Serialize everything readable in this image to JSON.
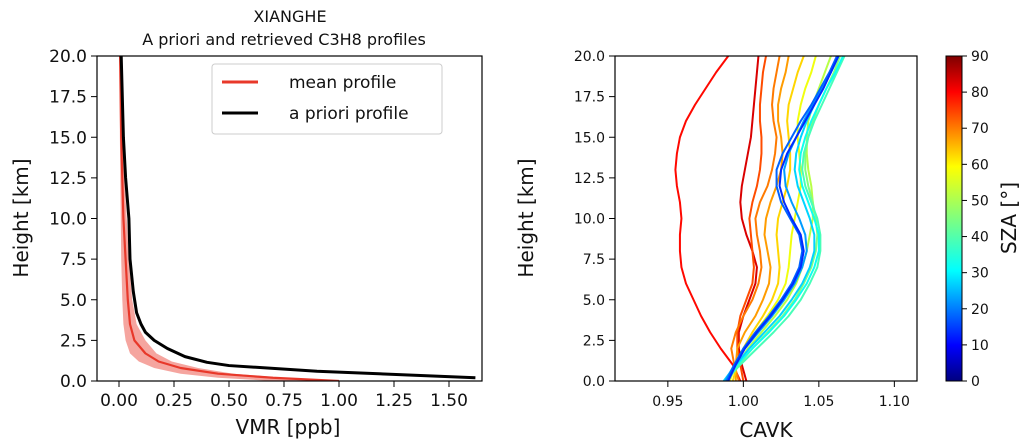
{
  "chart_data": [
    {
      "type": "line",
      "title": "XIANGHE",
      "subtitle": "A priori and retrieved C3H8 profiles",
      "xlabel": "VMR [ppb]",
      "ylabel": "Height [km]",
      "xlim": [
        -0.1,
        1.65
      ],
      "ylim": [
        0,
        20
      ],
      "xticks": [
        "0.00",
        "0.25",
        "0.50",
        "0.75",
        "1.00",
        "1.25",
        "1.50"
      ],
      "yticks": [
        "0.0",
        "2.5",
        "5.0",
        "7.5",
        "10.0",
        "12.5",
        "15.0",
        "17.5",
        "20.0"
      ],
      "legend": "top-right",
      "grid": false,
      "series": [
        {
          "name": "mean profile",
          "color": "#e8382a",
          "x": [
            1.0,
            0.7,
            0.45,
            0.28,
            0.18,
            0.12,
            0.07,
            0.05,
            0.04,
            0.03,
            0.02,
            0.015,
            0.01,
            0.005
          ],
          "y": [
            0.0,
            0.2,
            0.45,
            0.8,
            1.2,
            1.7,
            2.5,
            3.5,
            5.0,
            7.5,
            10.0,
            12.5,
            15.0,
            20.0
          ],
          "band_low": [
            0.7,
            0.45,
            0.28,
            0.16,
            0.09,
            0.05,
            0.03,
            0.02,
            0.015,
            0.01,
            0.008,
            0.006,
            0.004,
            0.002
          ],
          "band_high": [
            1.0,
            0.75,
            0.52,
            0.36,
            0.24,
            0.17,
            0.12,
            0.08,
            0.06,
            0.045,
            0.035,
            0.025,
            0.018,
            0.01
          ]
        },
        {
          "name": "a priori profile",
          "color": "#000000",
          "x": [
            1.62,
            0.9,
            0.5,
            0.4,
            0.3,
            0.22,
            0.16,
            0.12,
            0.1,
            0.08,
            0.065,
            0.05,
            0.045,
            0.03,
            0.02,
            0.01
          ],
          "y": [
            0.2,
            0.6,
            0.95,
            1.15,
            1.5,
            2.0,
            2.5,
            3.0,
            3.5,
            4.2,
            5.5,
            7.5,
            10.0,
            12.5,
            15.0,
            20.0
          ]
        }
      ]
    },
    {
      "type": "line",
      "xlabel": "CAVK",
      "ylabel": "Height [km]",
      "xlim": [
        0.915,
        1.115
      ],
      "ylim": [
        0,
        20
      ],
      "xticks": [
        "0.95",
        "1.00",
        "1.05",
        "1.10"
      ],
      "yticks": [
        "0.0",
        "2.5",
        "5.0",
        "7.5",
        "10.0",
        "12.5",
        "15.0",
        "17.5",
        "20.0"
      ],
      "colorbar": {
        "label": "SZA [°]",
        "range": [
          0,
          90
        ],
        "ticks": [
          "0",
          "10",
          "20",
          "30",
          "40",
          "50",
          "60",
          "70",
          "80",
          "90"
        ],
        "colormap": "jet"
      },
      "grid": false,
      "heights": [
        0,
        1,
        2,
        3,
        4,
        5,
        6,
        7,
        8,
        9,
        10,
        11,
        12,
        13,
        14,
        15,
        16,
        17,
        18,
        19,
        20
      ],
      "series": [
        {
          "sza": 78,
          "x": [
            0.998,
            0.993,
            0.985,
            0.978,
            0.972,
            0.967,
            0.962,
            0.959,
            0.958,
            0.958,
            0.959,
            0.958,
            0.956,
            0.955,
            0.956,
            0.958,
            0.962,
            0.968,
            0.975,
            0.982,
            0.99
          ]
        },
        {
          "sza": 72,
          "x": [
            1.0,
            0.998,
            0.996,
            0.996,
            0.998,
            1.002,
            1.006,
            1.007,
            1.006,
            1.005,
            1.004,
            1.006,
            1.009,
            1.011,
            1.012,
            1.012,
            1.011,
            1.011,
            1.012,
            1.013,
            1.015
          ]
        },
        {
          "sza": 68,
          "x": [
            0.997,
            0.994,
            0.992,
            0.995,
            1.0,
            1.006,
            1.01,
            1.012,
            1.011,
            1.009,
            1.008,
            1.011,
            1.016,
            1.019,
            1.021,
            1.022,
            1.02,
            1.019,
            1.02,
            1.022,
            1.024
          ]
        },
        {
          "sza": 65,
          "x": [
            0.995,
            0.995,
            0.996,
            1.001,
            1.008,
            1.013,
            1.017,
            1.018,
            1.016,
            1.014,
            1.015,
            1.018,
            1.022,
            1.025,
            1.026,
            1.025,
            1.023,
            1.023,
            1.025,
            1.028,
            1.03
          ]
        },
        {
          "sza": 60,
          "x": [
            0.993,
            0.996,
            1.0,
            1.006,
            1.013,
            1.019,
            1.023,
            1.024,
            1.023,
            1.022,
            1.023,
            1.026,
            1.029,
            1.031,
            1.031,
            1.03,
            1.029,
            1.03,
            1.033,
            1.036,
            1.04
          ]
        },
        {
          "sza": 55,
          "x": [
            0.991,
            0.995,
            1.0,
            1.008,
            1.016,
            1.023,
            1.028,
            1.03,
            1.031,
            1.032,
            1.034,
            1.036,
            1.038,
            1.038,
            1.037,
            1.036,
            1.036,
            1.038,
            1.041,
            1.045,
            1.048
          ]
        },
        {
          "sza": 50,
          "x": [
            0.99,
            0.996,
            1.003,
            1.012,
            1.021,
            1.029,
            1.035,
            1.039,
            1.042,
            1.044,
            1.046,
            1.046,
            1.045,
            1.043,
            1.042,
            1.042,
            1.043,
            1.046,
            1.05,
            1.054,
            1.058
          ]
        },
        {
          "sza": 45,
          "x": [
            0.989,
            0.997,
            1.006,
            1.016,
            1.026,
            1.034,
            1.04,
            1.045,
            1.048,
            1.049,
            1.048,
            1.046,
            1.043,
            1.041,
            1.041,
            1.043,
            1.046,
            1.05,
            1.055,
            1.06,
            1.064
          ]
        },
        {
          "sza": 40,
          "x": [
            0.988,
            0.998,
            1.009,
            1.02,
            1.03,
            1.038,
            1.044,
            1.049,
            1.051,
            1.051,
            1.049,
            1.045,
            1.041,
            1.039,
            1.04,
            1.043,
            1.047,
            1.052,
            1.057,
            1.062,
            1.067
          ]
        },
        {
          "sza": 35,
          "x": [
            0.987,
            0.996,
            1.006,
            1.017,
            1.027,
            1.035,
            1.042,
            1.047,
            1.05,
            1.05,
            1.047,
            1.043,
            1.039,
            1.037,
            1.038,
            1.041,
            1.045,
            1.05,
            1.055,
            1.061,
            1.066
          ]
        },
        {
          "sza": 30,
          "x": [
            0.987,
            0.995,
            1.004,
            1.014,
            1.024,
            1.032,
            1.039,
            1.044,
            1.047,
            1.047,
            1.044,
            1.04,
            1.036,
            1.034,
            1.035,
            1.038,
            1.042,
            1.047,
            1.052,
            1.058,
            1.063
          ]
        },
        {
          "sza": 25,
          "x": [
            0.988,
            0.994,
            1.001,
            1.01,
            1.019,
            1.027,
            1.034,
            1.039,
            1.042,
            1.041,
            1.037,
            1.032,
            1.028,
            1.027,
            1.03,
            1.035,
            1.04,
            1.046,
            1.052,
            1.058,
            1.063
          ]
        },
        {
          "sza": 20,
          "x": [
            0.989,
            0.994,
            1.0,
            1.008,
            1.017,
            1.025,
            1.032,
            1.037,
            1.039,
            1.037,
            1.031,
            1.025,
            1.022,
            1.022,
            1.026,
            1.032,
            1.038,
            1.045,
            1.051,
            1.057,
            1.062
          ]
        },
        {
          "sza": 15,
          "x": [
            0.99,
            0.995,
            1.001,
            1.009,
            1.018,
            1.026,
            1.033,
            1.038,
            1.04,
            1.038,
            1.032,
            1.027,
            1.024,
            1.025,
            1.029,
            1.035,
            1.041,
            1.047,
            1.053,
            1.058,
            1.063
          ]
        },
        {
          "sza": 82,
          "x": [
            1.002,
            0.999,
            0.997,
            0.997,
            1.0,
            1.004,
            1.008,
            1.009,
            1.006,
            1.002,
            0.999,
            0.998,
            0.999,
            1.001,
            1.003,
            1.005,
            1.006,
            1.007,
            1.008,
            1.009,
            1.01
          ]
        }
      ]
    }
  ]
}
